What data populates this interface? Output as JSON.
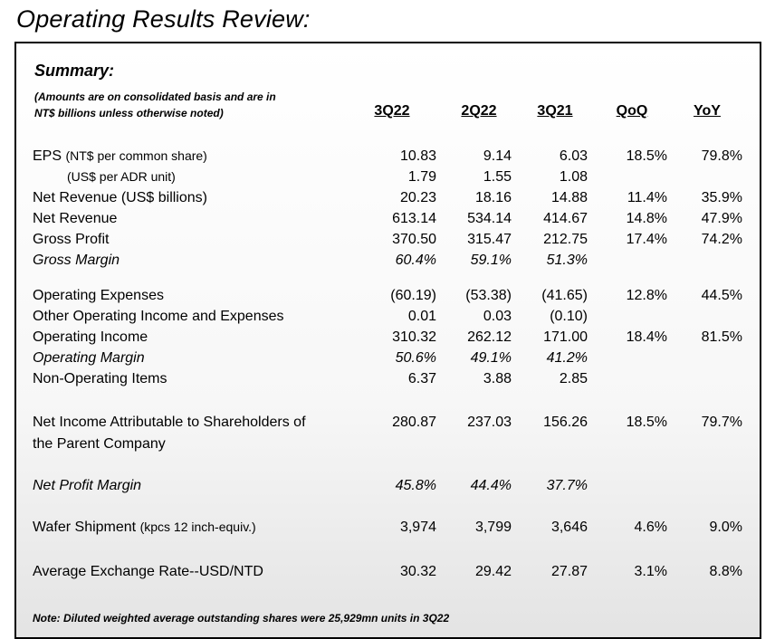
{
  "title": "Operating Results Review:",
  "summary_heading": "Summary:",
  "basis_line1": "(Amounts are on consolidated basis and are in",
  "basis_line2": "NT$ billions unless otherwise noted)",
  "columns": [
    "3Q22",
    "2Q22",
    "3Q21",
    "QoQ",
    "YoY"
  ],
  "rows": {
    "eps": {
      "label": "EPS",
      "unit": "(NT$ per common share)",
      "values": [
        "10.83",
        "9.14",
        "6.03",
        "18.5%",
        "79.8%"
      ]
    },
    "eps_adr": {
      "label": "(US$ per ADR unit)",
      "values": [
        "1.79",
        "1.55",
        "1.08",
        "",
        ""
      ]
    },
    "net_rev_usd": {
      "label": "Net Revenue (US$ billions)",
      "values": [
        "20.23",
        "18.16",
        "14.88",
        "11.4%",
        "35.9%"
      ]
    },
    "net_rev": {
      "label": "Net Revenue",
      "values": [
        "613.14",
        "534.14",
        "414.67",
        "14.8%",
        "47.9%"
      ]
    },
    "gross_profit": {
      "label": "Gross Profit",
      "values": [
        "370.50",
        "315.47",
        "212.75",
        "17.4%",
        "74.2%"
      ]
    },
    "gross_margin": {
      "label": "Gross Margin",
      "values": [
        "60.4%",
        "59.1%",
        "51.3%",
        "",
        ""
      ]
    },
    "opex": {
      "label": "Operating Expenses",
      "values": [
        "(60.19)",
        "(53.38)",
        "(41.65)",
        "12.8%",
        "44.5%"
      ]
    },
    "other_op": {
      "label": "Other Operating Income and Expenses",
      "values": [
        "0.01",
        "0.03",
        "(0.10)",
        "",
        ""
      ]
    },
    "op_income": {
      "label": "Operating Income",
      "values": [
        "310.32",
        "262.12",
        "171.00",
        "18.4%",
        "81.5%"
      ]
    },
    "op_margin": {
      "label": "Operating Margin",
      "values": [
        "50.6%",
        "49.1%",
        "41.2%",
        "",
        ""
      ]
    },
    "non_op": {
      "label": "Non-Operating Items",
      "values": [
        "6.37",
        "3.88",
        "2.85",
        "",
        ""
      ]
    },
    "net_income": {
      "label": "Net Income Attributable to Shareholders of",
      "label2": "the Parent Company",
      "values": [
        "280.87",
        "237.03",
        "156.26",
        "18.5%",
        "79.7%"
      ]
    },
    "net_margin": {
      "label": "Net Profit Margin",
      "values": [
        "45.8%",
        "44.4%",
        "37.7%",
        "",
        ""
      ]
    },
    "wafer": {
      "label": "Wafer Shipment",
      "unit": "(kpcs 12 inch-equiv.)",
      "values": [
        "3,974",
        "3,799",
        "3,646",
        "4.6%",
        "9.0%"
      ]
    },
    "fx": {
      "label": "Average Exchange Rate--USD/NTD",
      "values": [
        "30.32",
        "29.42",
        "27.87",
        "3.1%",
        "8.8%"
      ]
    }
  },
  "note": "Note: Diluted weighted average outstanding shares were 25,929mn units in 3Q22"
}
